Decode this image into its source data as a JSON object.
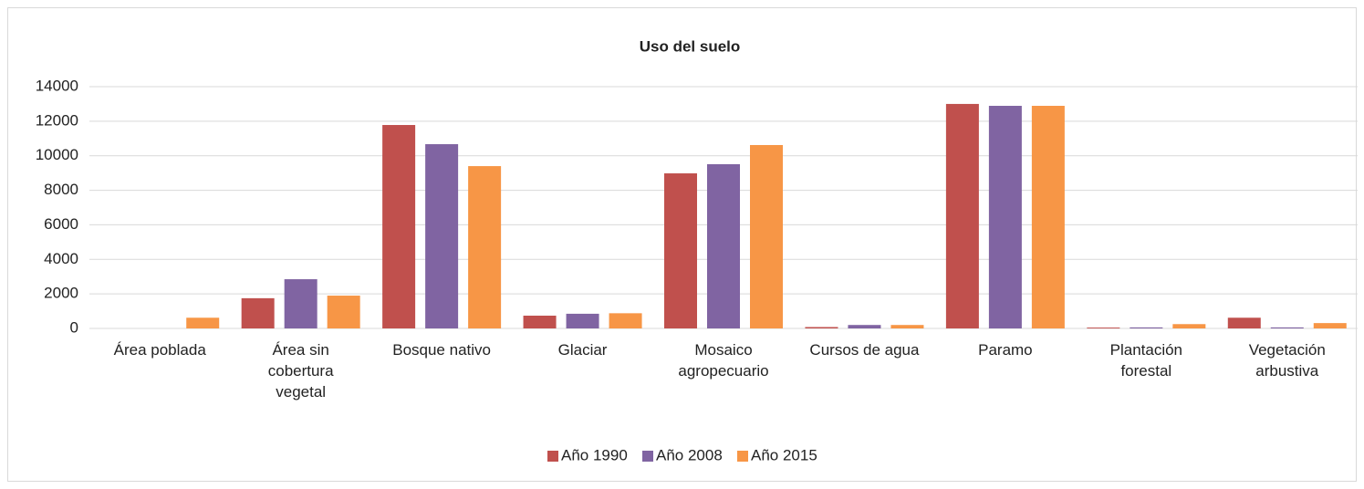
{
  "chart_data": {
    "type": "bar",
    "title": "Uso del suelo",
    "categories": [
      "Área poblada",
      "Área sin cobertura vegetal",
      "Bosque nativo",
      "Glaciar",
      "Mosaico agropecuario",
      "Cursos de agua",
      "Paramo",
      "Plantación forestal",
      "Vegetación arbustiva"
    ],
    "series": [
      {
        "name": "Año 1990",
        "color": "#c0504d",
        "values": [
          0,
          1750,
          11780,
          740,
          8980,
          80,
          13000,
          50,
          620
        ]
      },
      {
        "name": "Año 2008",
        "color": "#8064a2",
        "values": [
          0,
          2850,
          10670,
          850,
          9510,
          200,
          12890,
          60,
          60
        ]
      },
      {
        "name": "Año 2015",
        "color": "#f79646",
        "values": [
          620,
          1900,
          9400,
          880,
          10620,
          200,
          12890,
          250,
          310
        ]
      }
    ],
    "ylim": [
      0,
      14000
    ],
    "yticks": [
      0,
      2000,
      4000,
      6000,
      8000,
      10000,
      12000,
      14000
    ],
    "grid": true,
    "legend": "bottom"
  }
}
